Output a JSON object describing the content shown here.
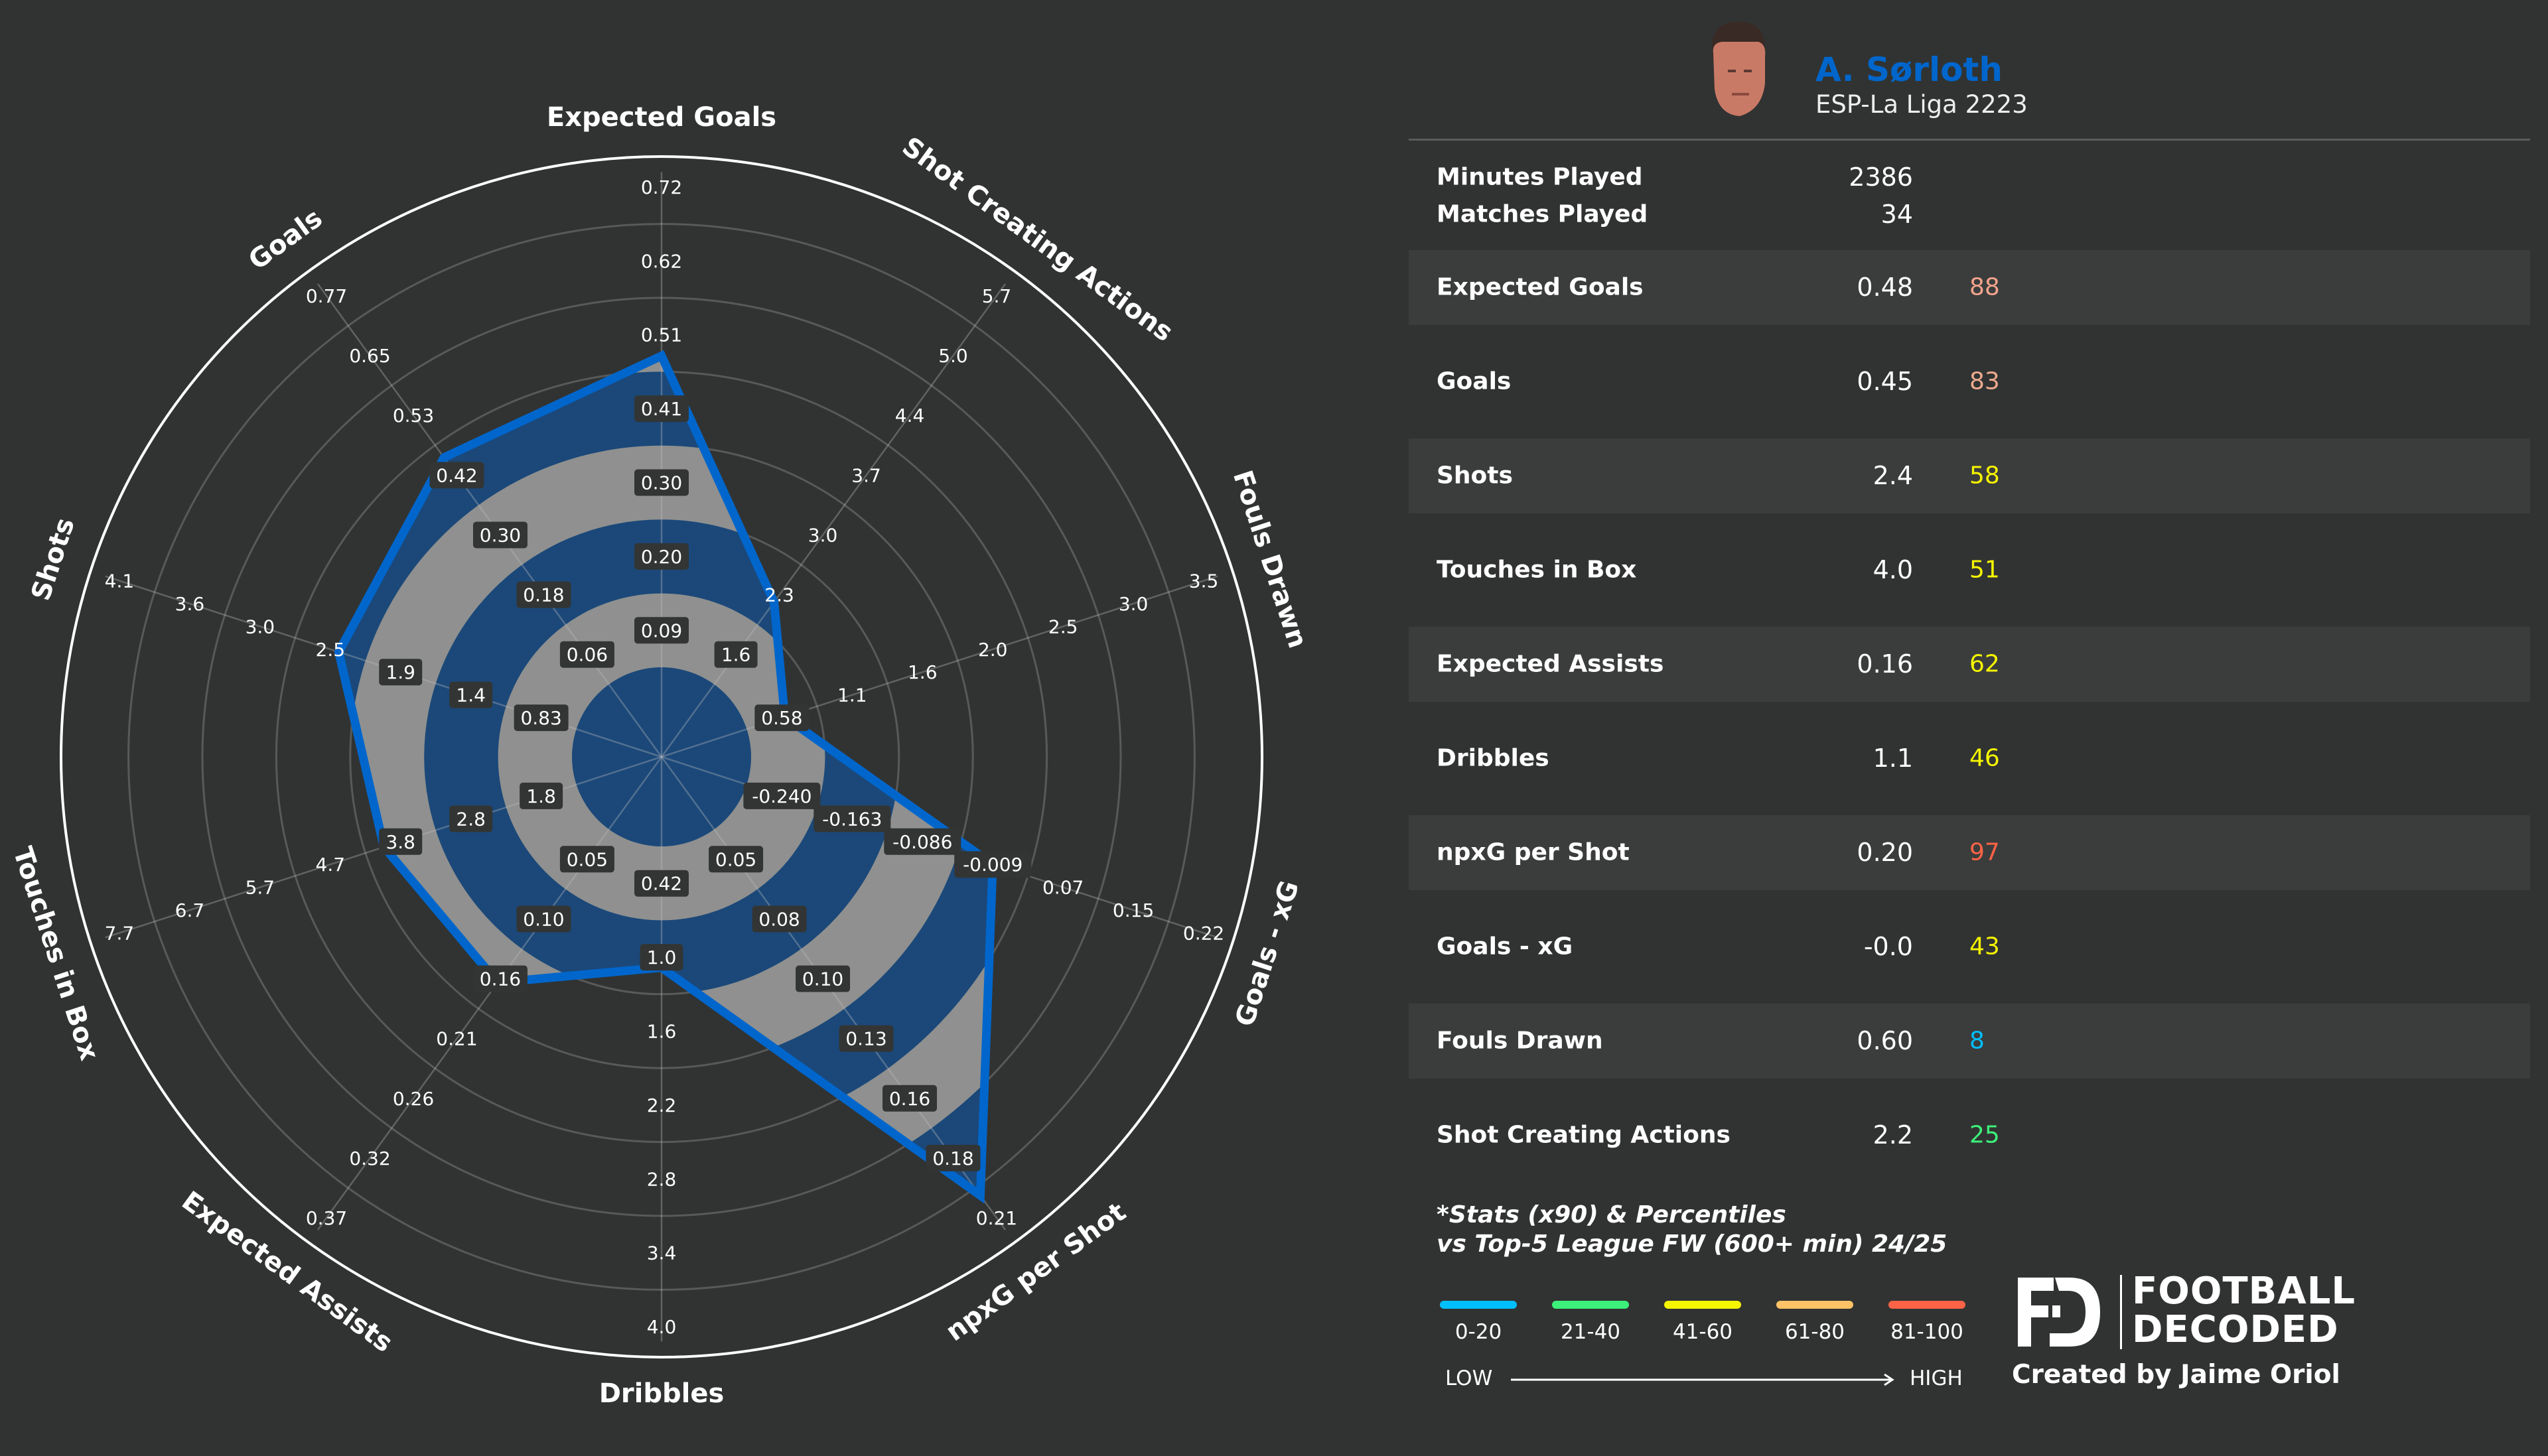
{
  "player": {
    "name": "A. Sørloth",
    "competition": "ESP-La Liga 2223",
    "minutes_label": "Minutes Played",
    "minutes_value": "2386",
    "matches_label": "Matches Played",
    "matches_value": "34"
  },
  "stats": [
    {
      "label": "Expected Goals",
      "value": "0.48",
      "percentile": "88",
      "color": "#f4a38c"
    },
    {
      "label": "Goals",
      "value": "0.45",
      "percentile": "83",
      "color": "#eeaa8e"
    },
    {
      "label": "Shots",
      "value": "2.4",
      "percentile": "58",
      "color": "#f5f500"
    },
    {
      "label": "Touches in Box",
      "value": "4.0",
      "percentile": "51",
      "color": "#f5f500"
    },
    {
      "label": "Expected Assists",
      "value": "0.16",
      "percentile": "62",
      "color": "#f5f500"
    },
    {
      "label": "Dribbles",
      "value": "1.1",
      "percentile": "46",
      "color": "#f5f500"
    },
    {
      "label": "npxG per Shot",
      "value": "0.20",
      "percentile": "97",
      "color": "#ff6347"
    },
    {
      "label": "Goals - xG",
      "value": "-0.0",
      "percentile": "43",
      "color": "#f5f500"
    },
    {
      "label": "Fouls Drawn",
      "value": "0.60",
      "percentile": "8",
      "color": "#00bfff"
    },
    {
      "label": "Shot Creating Actions",
      "value": "2.2",
      "percentile": "25",
      "color": "#3cf07a"
    }
  ],
  "footnote": {
    "line1": "*Stats (x90) & Percentiles",
    "line2": "vs Top-5 League FW (600+ min) 24/25"
  },
  "legend": {
    "items": [
      {
        "label": "0-20",
        "color": "#00bfff"
      },
      {
        "label": "21-40",
        "color": "#3cf07a"
      },
      {
        "label": "41-60",
        "color": "#f5f500"
      },
      {
        "label": "61-80",
        "color": "#ffc266"
      },
      {
        "label": "81-100",
        "color": "#ff6347"
      }
    ],
    "low": "LOW",
    "high": "HIGH"
  },
  "branding": {
    "logo_line1": "FOOTBALL",
    "logo_line2": "DECODED",
    "credit": "Created by Jaime Oriol"
  },
  "chart_data": {
    "type": "radar",
    "colors": {
      "polygon_edge": "#0066cc",
      "band_blue": "#1b4879",
      "band_grey": "#8f908f",
      "background": "#313332"
    },
    "axes": [
      {
        "label": "Expected Goals",
        "ticks": [
          "0.09",
          "0.20",
          "0.30",
          "0.41",
          "0.51",
          "0.62",
          "0.72"
        ],
        "value": 0.48
      },
      {
        "label": "Shot Creating Actions",
        "ticks": [
          "1.6",
          "2.3",
          "3.0",
          "3.7",
          "4.4",
          "5.0",
          "5.7"
        ],
        "value": 2.2
      },
      {
        "label": "Fouls Drawn",
        "ticks": [
          "0.58",
          "1.1",
          "1.6",
          "2.0",
          "2.5",
          "3.0",
          "3.5"
        ],
        "value": 0.6
      },
      {
        "label": "Goals - xG",
        "ticks": [
          "-0.240",
          "-0.163",
          "-0.086",
          "-0.009",
          "0.07",
          "0.15",
          "0.22"
        ],
        "value": -0.01
      },
      {
        "label": "npxG per Shot",
        "ticks": [
          "0.05",
          "0.08",
          "0.10",
          "0.13",
          "0.16",
          "0.18",
          "0.21"
        ],
        "value": 0.2
      },
      {
        "label": "Dribbles",
        "ticks": [
          "0.42",
          "1.0",
          "1.6",
          "2.2",
          "2.8",
          "3.4",
          "4.0"
        ],
        "value": 1.1
      },
      {
        "label": "Expected Assists",
        "ticks": [
          "0.05",
          "0.10",
          "0.16",
          "0.21",
          "0.26",
          "0.32",
          "0.37"
        ],
        "value": 0.16
      },
      {
        "label": "Touches in Box",
        "ticks": [
          "1.8",
          "2.8",
          "3.8",
          "4.7",
          "5.7",
          "6.7",
          "7.7"
        ],
        "value": 4.0
      },
      {
        "label": "Shots",
        "ticks": [
          "0.83",
          "1.4",
          "1.9",
          "2.5",
          "3.0",
          "3.6",
          "4.1"
        ],
        "value": 2.4
      },
      {
        "label": "Goals",
        "ticks": [
          "0.06",
          "0.18",
          "0.30",
          "0.42",
          "0.53",
          "0.65",
          "0.77"
        ],
        "value": 0.45
      }
    ]
  }
}
